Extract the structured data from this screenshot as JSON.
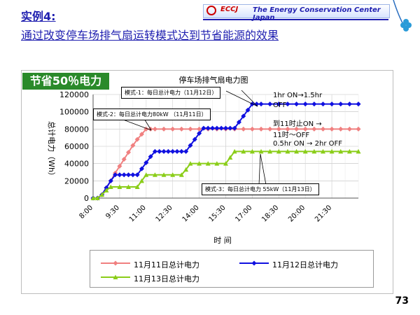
{
  "slide": {
    "heading1": "实例4:",
    "heading2": "通过改变停车场排气扇运转模式达到节省能源的效果",
    "logo": "ECCJ",
    "org": "The Energy Conservation Center Japan",
    "badge": "节省50％电力",
    "page_number": "73"
  },
  "annotations": {
    "callout_mode1": "模式-1：每日总计电力（11月12日）",
    "callout_mode2": "模式-2：每日总计电力80kW （11月11日）",
    "callout_mode3": "模式-3：每日总计电力 55kW（11月13日）",
    "note1": "1hr ON→1.5hr",
    "note2": "OFF",
    "note3": "到11时止ON →",
    "note4": "11时～OFF",
    "note5": "0.5hr ON → 2hr OFF"
  },
  "chart_data": {
    "type": "line",
    "title": "停车场排气扇电力图",
    "xlabel": "时    间",
    "ylabel": "总计电力（Wh）",
    "ylim": [
      0,
      120000
    ],
    "yticks": [
      0,
      20000,
      40000,
      60000,
      80000,
      100000,
      120000
    ],
    "ytick_labels": [
      "0",
      "20000",
      "40000",
      "60000",
      "80000",
      "100000",
      "120000"
    ],
    "xticks": [
      "8:00",
      "9:30",
      "11:00",
      "12:30",
      "14:00",
      "15:30",
      "17:00",
      "18:30",
      "20:00",
      "21:30"
    ],
    "xlim_hours": [
      8,
      23
    ],
    "grid": true,
    "legend_position": "bottom",
    "colors": {
      "nov11": "#f08080",
      "nov12": "#1010e0",
      "nov13": "#8acd18"
    },
    "series": [
      {
        "name": "11月11日总计电力",
        "key": "nov11",
        "marker": "diamond",
        "points": [
          [
            8,
            0
          ],
          [
            8.25,
            0
          ],
          [
            8.5,
            4000
          ],
          [
            8.75,
            12000
          ],
          [
            9,
            20000
          ],
          [
            9.25,
            29000
          ],
          [
            9.5,
            37000
          ],
          [
            9.75,
            45000
          ],
          [
            10,
            53000
          ],
          [
            10.25,
            61000
          ],
          [
            10.5,
            68000
          ],
          [
            10.75,
            74000
          ],
          [
            11,
            80000
          ],
          [
            11.25,
            80000
          ],
          [
            11.5,
            80000
          ],
          [
            12,
            80000
          ],
          [
            12.5,
            80000
          ],
          [
            13,
            80000
          ],
          [
            13.5,
            80000
          ],
          [
            14,
            80000
          ],
          [
            14.5,
            80000
          ],
          [
            15,
            80000
          ],
          [
            15.5,
            80000
          ],
          [
            16,
            80000
          ],
          [
            16.5,
            80000
          ],
          [
            17,
            80000
          ],
          [
            17.5,
            80000
          ],
          [
            18,
            80000
          ],
          [
            18.5,
            80000
          ],
          [
            19,
            80000
          ],
          [
            19.5,
            80000
          ],
          [
            20,
            80000
          ],
          [
            20.5,
            80000
          ],
          [
            21,
            80000
          ],
          [
            21.5,
            80000
          ],
          [
            22,
            80000
          ],
          [
            22.5,
            80000
          ],
          [
            23,
            80000
          ]
        ]
      },
      {
        "name": "11月12日总计电力",
        "key": "nov12",
        "marker": "diamond",
        "points": [
          [
            8,
            0
          ],
          [
            8.25,
            0
          ],
          [
            8.5,
            4000
          ],
          [
            8.75,
            12000
          ],
          [
            9,
            20000
          ],
          [
            9.25,
            27000
          ],
          [
            9.5,
            27000
          ],
          [
            9.75,
            27000
          ],
          [
            10,
            27000
          ],
          [
            10.25,
            27000
          ],
          [
            10.5,
            27000
          ],
          [
            10.75,
            34000
          ],
          [
            11,
            41000
          ],
          [
            11.25,
            48000
          ],
          [
            11.5,
            54000
          ],
          [
            11.75,
            54000
          ],
          [
            12,
            54000
          ],
          [
            12.25,
            54000
          ],
          [
            12.5,
            54000
          ],
          [
            12.75,
            54000
          ],
          [
            13,
            54000
          ],
          [
            13.25,
            54000
          ],
          [
            13.5,
            61000
          ],
          [
            13.75,
            68000
          ],
          [
            14,
            75000
          ],
          [
            14.25,
            81000
          ],
          [
            14.5,
            81000
          ],
          [
            14.75,
            81000
          ],
          [
            15,
            81000
          ],
          [
            15.25,
            81000
          ],
          [
            15.5,
            81000
          ],
          [
            15.75,
            81000
          ],
          [
            16,
            81000
          ],
          [
            16.25,
            88000
          ],
          [
            16.5,
            95000
          ],
          [
            16.75,
            102000
          ],
          [
            17,
            109000
          ],
          [
            17.25,
            109000
          ],
          [
            17.5,
            109000
          ],
          [
            18,
            109000
          ],
          [
            18.5,
            109000
          ],
          [
            19,
            109000
          ],
          [
            19.5,
            109000
          ],
          [
            20,
            109000
          ],
          [
            20.5,
            109000
          ],
          [
            21,
            109000
          ],
          [
            21.5,
            109000
          ],
          [
            22,
            109000
          ],
          [
            22.5,
            109000
          ],
          [
            23,
            109000
          ]
        ]
      },
      {
        "name": "11月13日总计电力",
        "key": "nov13",
        "marker": "triangle",
        "points": [
          [
            8,
            0
          ],
          [
            8.25,
            0
          ],
          [
            8.5,
            4000
          ],
          [
            8.75,
            9000
          ],
          [
            9,
            13000
          ],
          [
            9.5,
            13000
          ],
          [
            10,
            13000
          ],
          [
            10.5,
            13000
          ],
          [
            10.75,
            20000
          ],
          [
            11,
            27000
          ],
          [
            11.5,
            27000
          ],
          [
            12,
            27000
          ],
          [
            12.5,
            27000
          ],
          [
            13,
            27000
          ],
          [
            13.25,
            33000
          ],
          [
            13.5,
            40000
          ],
          [
            14,
            40000
          ],
          [
            14.5,
            40000
          ],
          [
            15,
            40000
          ],
          [
            15.5,
            40000
          ],
          [
            15.75,
            47000
          ],
          [
            16,
            54000
          ],
          [
            16.5,
            54000
          ],
          [
            17,
            54000
          ],
          [
            17.5,
            54000
          ],
          [
            18,
            54000
          ],
          [
            18.5,
            54000
          ],
          [
            19,
            54000
          ],
          [
            19.5,
            54000
          ],
          [
            20,
            54000
          ],
          [
            20.5,
            54000
          ],
          [
            21,
            54000
          ],
          [
            21.5,
            54000
          ],
          [
            22,
            54000
          ],
          [
            22.5,
            54000
          ],
          [
            23,
            54000
          ]
        ]
      }
    ]
  }
}
